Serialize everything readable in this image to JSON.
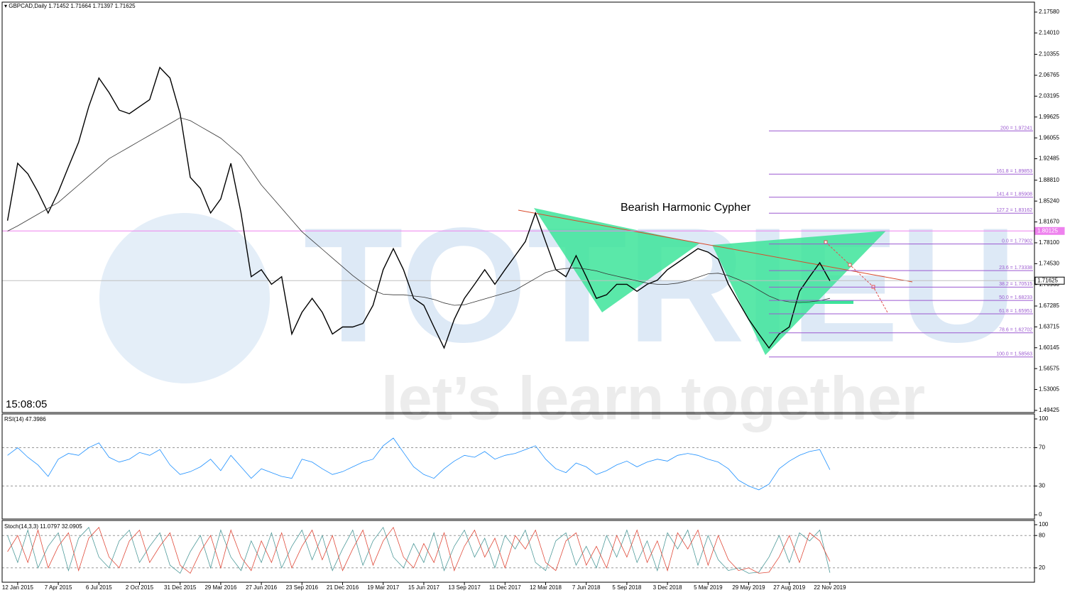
{
  "chart_data": [
    {
      "type": "line",
      "title": "GBPCAD,Daily  1.71452 1.71664 1.71397 1.71625",
      "clock": "15:08:05",
      "annotation": "Bearish Harmonic Cypher",
      "watermark": {
        "brand": "TOTRIEU",
        "slogan": "let’s learn together"
      },
      "categories": [
        null,
        "12 Jan 2015",
        null,
        null,
        null,
        "7 Apr 2015",
        null,
        null,
        null,
        "6 Jul 2015",
        null,
        null,
        null,
        "2 Oct 2015",
        null,
        null,
        null,
        "31 Dec 2015",
        null,
        null,
        null,
        "29 Mar 2016",
        null,
        null,
        null,
        "27 Jun 2016",
        null,
        null,
        null,
        "23 Sep 2016",
        null,
        null,
        null,
        "21 Dec 2016",
        null,
        null,
        null,
        "19 Mar 2017",
        null,
        null,
        null,
        "15 Jun 2017",
        null,
        null,
        null,
        "13 Sep 2017",
        null,
        null,
        null,
        "11 Dec 2017",
        null,
        null,
        null,
        "12 Mar 2018",
        null,
        null,
        null,
        "7 Jun 2018",
        null,
        null,
        null,
        "5 Sep 2018",
        null,
        null,
        null,
        "3 Dec 2018",
        null,
        null,
        null,
        "5 Mar 2019",
        null,
        null,
        null,
        "29 May 2019",
        null,
        null,
        null,
        "27 Aug 2019",
        null,
        null,
        null,
        "22 Nov 2019"
      ],
      "series": [
        {
          "color": "#000000",
          "values": [
            1.819,
            1.917,
            1.899,
            1.868,
            1.832,
            1.868,
            1.911,
            1.953,
            2.014,
            2.063,
            2.038,
            2.008,
            2.002,
            2.014,
            2.026,
            2.081,
            2.063,
            2.002,
            1.893,
            1.874,
            1.832,
            1.856,
            1.917,
            1.832,
            1.723,
            1.735,
            1.71,
            1.723,
            1.625,
            1.662,
            1.686,
            1.662,
            1.625,
            1.637,
            1.637,
            1.643,
            1.674,
            1.735,
            1.771,
            1.735,
            1.686,
            1.674,
            1.637,
            1.601,
            1.65,
            1.686,
            1.71,
            1.735,
            1.71,
            1.735,
            1.759,
            1.783,
            1.832,
            1.783,
            1.735,
            1.723,
            1.759,
            1.723,
            1.686,
            1.692,
            1.71,
            1.71,
            1.698,
            1.71,
            1.717,
            1.735,
            1.747,
            1.759,
            1.771,
            1.765,
            1.753,
            1.71,
            1.68,
            1.65,
            1.625,
            1.601,
            1.625,
            1.637,
            1.698,
            1.723,
            1.747,
            1.716
          ]
        },
        {
          "color": "#333333",
          "values": [
            1.801,
            1.81,
            1.82,
            1.83,
            1.84,
            1.85,
            1.865,
            1.88,
            1.895,
            1.91,
            1.925,
            1.935,
            1.945,
            1.955,
            1.965,
            1.975,
            1.985,
            1.995,
            1.99,
            1.98,
            1.97,
            1.96,
            1.945,
            1.93,
            1.905,
            1.88,
            1.86,
            1.84,
            1.82,
            1.8,
            1.785,
            1.77,
            1.755,
            1.74,
            1.725,
            1.712,
            1.7,
            1.693,
            1.692,
            1.692,
            1.69,
            1.688,
            1.684,
            1.678,
            1.674,
            1.675,
            1.68,
            1.685,
            1.69,
            1.695,
            1.7,
            1.71,
            1.72,
            1.73,
            1.735,
            1.737,
            1.738,
            1.736,
            1.733,
            1.728,
            1.724,
            1.72,
            1.716,
            1.712,
            1.71,
            1.71,
            1.712,
            1.716,
            1.722,
            1.728,
            1.729,
            1.725,
            1.718,
            1.71,
            1.7,
            1.69,
            1.683,
            1.68,
            1.679,
            1.68,
            1.682,
            1.686
          ]
        }
      ],
      "ylim": [
        1.4906,
        2.1916
      ],
      "yticks": [
        {
          "value": 2.1758,
          "label": "2.17580"
        },
        {
          "value": 2.1401,
          "label": "2.14010"
        },
        2.10355,
        2.06765,
        2.03195,
        1.99625,
        1.96055,
        1.92485,
        {
          "value": 1.8881,
          "label": "1.88810"
        },
        {
          "value": 1.8524,
          "label": "1.85240"
        },
        {
          "value": 1.8167,
          "label": "1.81670"
        },
        {
          "value": 1.781,
          "label": "1.78100"
        },
        {
          "value": 1.7453,
          "label": "1.74530"
        },
        {
          "value": 1.7096,
          "label": "1.70960"
        },
        1.67285,
        1.63715,
        1.60145,
        1.56575,
        1.53005,
        1.49425
      ],
      "hlines": [
        {
          "value": 1.80125,
          "color": "#ee82ee"
        },
        {
          "value": 1.71625,
          "color": "#c0c0c0"
        }
      ],
      "fib_levels": [
        {
          "value": 1.97241,
          "label": "200 = 1.97241"
        },
        {
          "value": 1.89853,
          "label": "161.8 = 1.89853"
        },
        {
          "value": 1.85908,
          "label": "141.4 = 1.85908"
        },
        {
          "value": 1.83162,
          "label": "127.2 = 1.83162"
        },
        {
          "value": 1.77902,
          "label": "0.0 = 1.77902"
        },
        {
          "value": 1.73338,
          "label": "23.6 = 1.73338"
        },
        {
          "value": 1.70515,
          "label": "38.2 = 1.70515"
        },
        {
          "value": 1.68233,
          "label": "50.0 = 1.68233"
        },
        {
          "value": 1.65951,
          "label": "61.8 = 1.65951"
        },
        {
          "value": 1.62702,
          "label": "78.6 = 1.62702"
        },
        {
          "value": 1.58563,
          "label": "100.0 = 1.58563"
        }
      ],
      "fib_color": "#9b59d0"
    },
    {
      "type": "line",
      "title": "RSI(14) 47.3986",
      "series": [
        {
          "color": "#1e90ff",
          "values": [
            62,
            70,
            60,
            52,
            40,
            58,
            64,
            62,
            70,
            75,
            60,
            55,
            58,
            65,
            62,
            68,
            52,
            42,
            45,
            50,
            58,
            46,
            62,
            50,
            38,
            48,
            44,
            40,
            38,
            58,
            55,
            48,
            42,
            45,
            50,
            55,
            58,
            72,
            80,
            65,
            50,
            42,
            38,
            48,
            56,
            62,
            60,
            66,
            58,
            62,
            64,
            68,
            72,
            58,
            48,
            44,
            54,
            50,
            42,
            46,
            52,
            56,
            50,
            55,
            58,
            56,
            62,
            64,
            62,
            58,
            55,
            48,
            36,
            30,
            26,
            32,
            48,
            56,
            62,
            66,
            68,
            47
          ]
        }
      ],
      "ylim": [
        -4.4,
        105.2
      ],
      "yticks": [
        0,
        30,
        70,
        100
      ],
      "levels": [
        30,
        70
      ]
    },
    {
      "type": "line",
      "title": "Stoch(14,3,3) 11.0797 32.0905",
      "series": [
        {
          "color": "#4f9a9a",
          "values": [
            80,
            30,
            90,
            20,
            60,
            85,
            15,
            75,
            95,
            40,
            20,
            70,
            90,
            30,
            60,
            85,
            25,
            10,
            50,
            80,
            20,
            90,
            40,
            15,
            70,
            30,
            85,
            20,
            60,
            90,
            35,
            80,
            15,
            55,
            90,
            25,
            70,
            95,
            40,
            20,
            65,
            30,
            85,
            15,
            60,
            90,
            40,
            75,
            20,
            80,
            55,
            90,
            30,
            15,
            70,
            85,
            25,
            60,
            20,
            80,
            40,
            90,
            30,
            70,
            15,
            85,
            55,
            90,
            25,
            80,
            35,
            15,
            20,
            10,
            12,
            40,
            80,
            30,
            85,
            70,
            90,
            11
          ]
        },
        {
          "color": "#e04a3a",
          "values": [
            50,
            80,
            30,
            90,
            20,
            60,
            85,
            15,
            75,
            95,
            40,
            20,
            70,
            90,
            30,
            60,
            85,
            25,
            10,
            50,
            80,
            20,
            90,
            40,
            15,
            70,
            30,
            85,
            20,
            60,
            90,
            35,
            80,
            15,
            55,
            90,
            25,
            70,
            95,
            40,
            20,
            65,
            30,
            85,
            15,
            60,
            90,
            40,
            75,
            20,
            80,
            55,
            90,
            30,
            15,
            70,
            85,
            25,
            60,
            20,
            80,
            40,
            90,
            30,
            70,
            15,
            85,
            55,
            90,
            25,
            80,
            35,
            15,
            20,
            10,
            12,
            40,
            80,
            30,
            85,
            70,
            32
          ]
        }
      ],
      "ylim": [
        -6.6,
        107.9
      ],
      "yticks": [
        20,
        80,
        100
      ],
      "levels": [
        20,
        80
      ]
    }
  ]
}
